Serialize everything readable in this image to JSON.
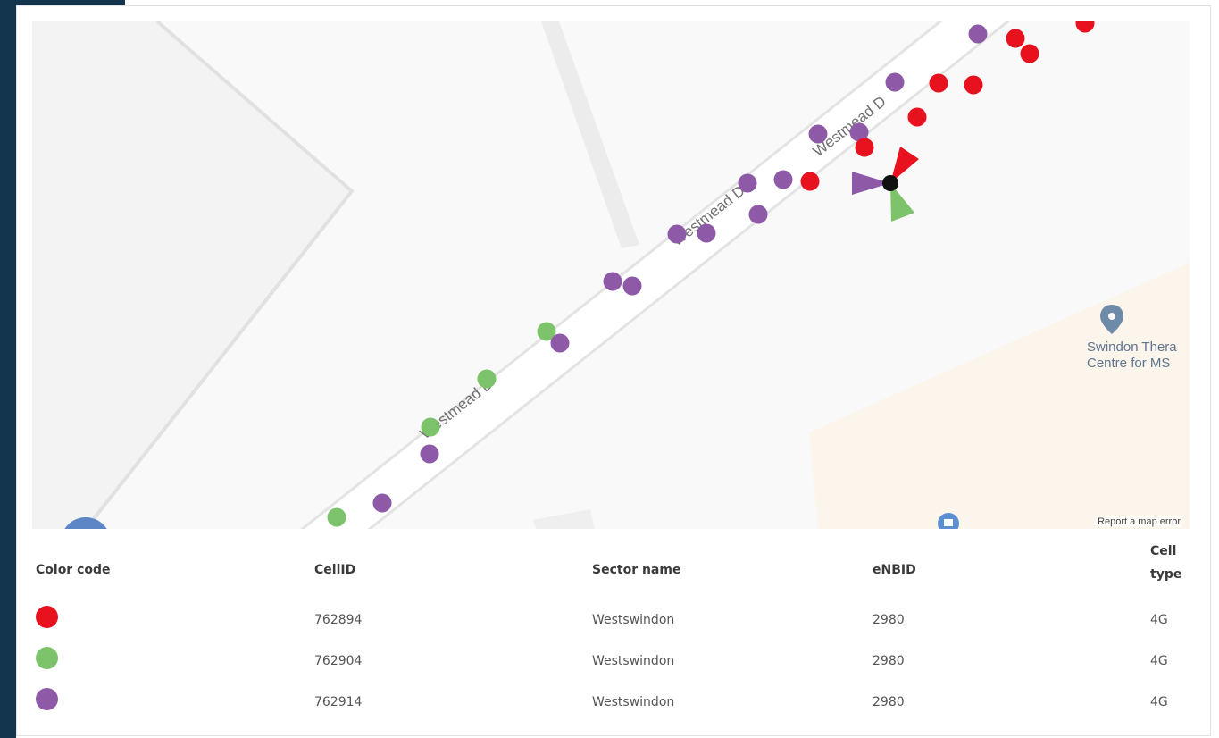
{
  "map": {
    "street_name": "Westmead Dr",
    "street_labels": [
      "Westmead D",
      "Westmead Dr",
      "Westmead D"
    ],
    "poi": {
      "name": "Swindon Thera\nCentre for MS",
      "icon": "map-pin-icon"
    },
    "report_link": "Report a map error",
    "colors": {
      "red": "#e8121f",
      "green": "#7dc36b",
      "purple": "#8e5aa8",
      "site": "#111111"
    },
    "site_icon": "cell-site-icon",
    "sector_icons": [
      "red-sector-arrow-icon",
      "purple-sector-arrow-icon",
      "green-sector-arrow-icon"
    ]
  },
  "legend": {
    "headers": {
      "color_code": "Color code",
      "cell_id": "CellID",
      "sector_name": "Sector name",
      "enbid": "eNBID",
      "cell_type_line1": "Cell",
      "cell_type_line2": "type"
    },
    "rows": [
      {
        "color": "#e8121f",
        "cell_id": "762894",
        "sector_name": "Westswindon",
        "enbid": "2980",
        "cell_type": "4G"
      },
      {
        "color": "#7dc36b",
        "cell_id": "762904",
        "sector_name": "Westswindon",
        "enbid": "2980",
        "cell_type": "4G"
      },
      {
        "color": "#8e5aa8",
        "cell_id": "762914",
        "sector_name": "Westswindon",
        "enbid": "2980",
        "cell_type": "4G"
      }
    ]
  }
}
